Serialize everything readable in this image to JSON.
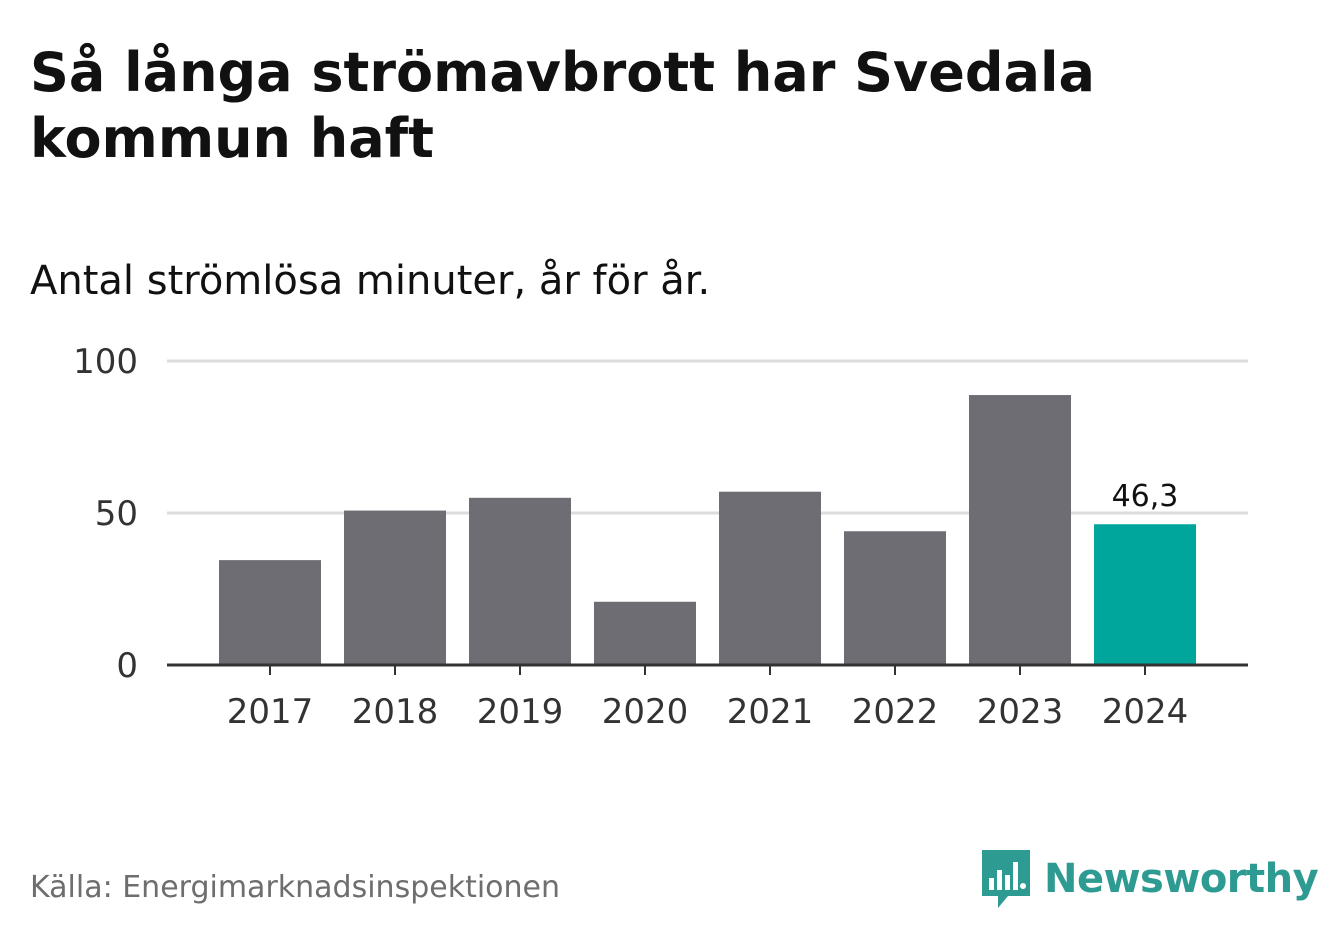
{
  "header": {
    "title": "Så långa strömavbrott har Svedala kommun haft",
    "subtitle": "Antal strömlösa minuter, år för år."
  },
  "footer": {
    "source": "Källa: Energimarknadsinspektionen",
    "brand": "Newsworthy",
    "brand_icon": "bar-chart-speech-bubble-icon"
  },
  "colors": {
    "bar": "#6e6d73",
    "highlight": "#00a69c",
    "grid": "#dcdcdc",
    "axis": "#333333",
    "brand": "#2e9b93"
  },
  "chart_data": {
    "type": "bar",
    "title": "Så långa strömavbrott har Svedala kommun haft",
    "subtitle": "Antal strömlösa minuter, år för år.",
    "xlabel": "",
    "ylabel": "",
    "categories": [
      "2017",
      "2018",
      "2019",
      "2020",
      "2021",
      "2022",
      "2023",
      "2024"
    ],
    "values": [
      34.5,
      50.8,
      55.0,
      20.8,
      57.0,
      44.0,
      88.8,
      46.3
    ],
    "highlight_index": 7,
    "data_labels": {
      "7": "46,3"
    },
    "yticks": [
      0,
      50,
      100
    ],
    "ylim": [
      0,
      100
    ],
    "grid": true
  }
}
